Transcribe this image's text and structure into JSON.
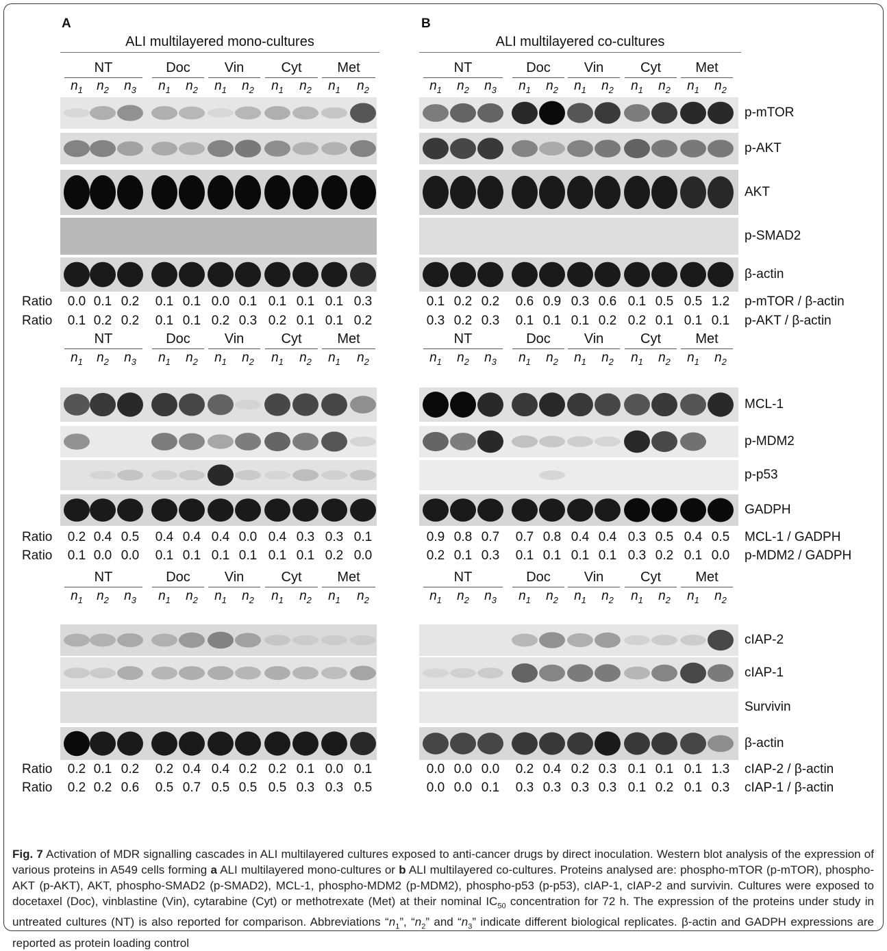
{
  "panels": {
    "A": {
      "label": "A",
      "title": "ALI multilayered mono-cultures"
    },
    "B": {
      "label": "B",
      "title": "ALI multilayered co-cultures"
    }
  },
  "groups": [
    "NT",
    "Doc",
    "Vin",
    "Cyt",
    "Met"
  ],
  "lanes": [
    {
      "letter": "n",
      "sub": "1"
    },
    {
      "letter": "n",
      "sub": "2"
    },
    {
      "letter": "n",
      "sub": "3"
    },
    {
      "letter": "n",
      "sub": "1"
    },
    {
      "letter": "n",
      "sub": "2"
    },
    {
      "letter": "n",
      "sub": "1"
    },
    {
      "letter": "n",
      "sub": "2"
    },
    {
      "letter": "n",
      "sub": "1"
    },
    {
      "letter": "n",
      "sub": "2"
    },
    {
      "letter": "n",
      "sub": "1"
    },
    {
      "letter": "n",
      "sub": "2"
    }
  ],
  "blocks": [
    {
      "blots": [
        {
          "protein": "p-mTOR",
          "bg": "#e6e6e6",
          "A": [
            0.05,
            0.35,
            0.5,
            0.35,
            0.3,
            0.05,
            0.3,
            0.35,
            0.3,
            0.2,
            0.75
          ],
          "B": [
            0.6,
            0.7,
            0.7,
            0.9,
            1.0,
            0.75,
            0.85,
            0.6,
            0.85,
            0.9,
            0.9
          ]
        },
        {
          "protein": "p-AKT",
          "bg": "#dcdcdc",
          "A": [
            0.55,
            0.55,
            0.4,
            0.35,
            0.3,
            0.55,
            0.6,
            0.5,
            0.3,
            0.3,
            0.55
          ],
          "B": [
            0.85,
            0.8,
            0.85,
            0.55,
            0.35,
            0.55,
            0.6,
            0.7,
            0.6,
            0.6,
            0.6
          ]
        },
        {
          "protein": "AKT",
          "bg": "#d4d4d4",
          "A": [
            1.0,
            1.0,
            1.0,
            1.0,
            1.0,
            1.0,
            1.0,
            1.0,
            1.0,
            1.0,
            1.0
          ],
          "B": [
            0.95,
            0.95,
            0.95,
            0.95,
            0.95,
            0.95,
            0.95,
            0.95,
            0.95,
            0.9,
            0.9
          ]
        },
        {
          "protein": "p-SMAD2",
          "bg": "#b8b8b8",
          "bgB": "#dedede",
          "A": [
            0,
            0,
            0,
            0,
            0,
            0,
            0,
            0,
            0,
            0,
            0
          ],
          "B": [
            0,
            0,
            0,
            0,
            0,
            0,
            0,
            0,
            0,
            0,
            0
          ]
        },
        {
          "protein": "β-actin",
          "bg": "#d8d8d8",
          "A": [
            0.95,
            0.95,
            0.95,
            0.95,
            0.95,
            0.95,
            0.95,
            0.95,
            0.95,
            0.95,
            0.9
          ],
          "B": [
            0.95,
            0.95,
            0.95,
            0.95,
            0.95,
            0.95,
            0.95,
            0.95,
            0.95,
            0.95,
            0.95
          ]
        }
      ],
      "ratios": [
        {
          "label": "Ratio",
          "A": [
            "0.0",
            "0.1",
            "0.2",
            "0.1",
            "0.1",
            "0.0",
            "0.1",
            "0.1",
            "0.1",
            "0.1",
            "0.3"
          ],
          "B": [
            "0.1",
            "0.2",
            "0.2",
            "0.6",
            "0.9",
            "0.3",
            "0.6",
            "0.1",
            "0.5",
            "0.5",
            "1.2"
          ],
          "desc": "p-mTOR / β-actin"
        },
        {
          "label": "Ratio",
          "A": [
            "0.1",
            "0.2",
            "0.2",
            "0.1",
            "0.1",
            "0.2",
            "0.3",
            "0.2",
            "0.1",
            "0.1",
            "0.2"
          ],
          "B": [
            "0.3",
            "0.2",
            "0.3",
            "0.1",
            "0.1",
            "0.1",
            "0.2",
            "0.2",
            "0.1",
            "0.1",
            "0.1"
          ],
          "desc": "p-AKT / β-actin"
        }
      ]
    },
    {
      "blots": [
        {
          "protein": "MCL-1",
          "bg": "#e0e0e0",
          "A": [
            0.75,
            0.85,
            0.9,
            0.85,
            0.8,
            0.7,
            0.05,
            0.8,
            0.8,
            0.8,
            0.5
          ],
          "B": [
            1.0,
            1.0,
            0.9,
            0.85,
            0.9,
            0.85,
            0.8,
            0.75,
            0.85,
            0.75,
            0.9
          ]
        },
        {
          "protein": "p-MDM2",
          "bg": "#eaeaea",
          "A": [
            0.5,
            0.0,
            0.0,
            0.6,
            0.55,
            0.4,
            0.6,
            0.7,
            0.6,
            0.75,
            0.1
          ],
          "B": [
            0.7,
            0.6,
            0.9,
            0.25,
            0.2,
            0.15,
            0.1,
            0.9,
            0.8,
            0.65,
            0.0
          ]
        },
        {
          "protein": "p-p53",
          "bg": "#e2e2e2",
          "bgB": "#ececec",
          "A": [
            0.0,
            0.05,
            0.2,
            0.1,
            0.15,
            0.9,
            0.15,
            0.05,
            0.25,
            0.1,
            0.2
          ],
          "B": [
            0,
            0,
            0,
            0,
            0.1,
            0,
            0,
            0,
            0,
            0,
            0
          ]
        },
        {
          "protein": "GADPH",
          "bg": "#d6d6d6",
          "A": [
            0.95,
            0.95,
            0.95,
            0.95,
            0.95,
            0.95,
            0.95,
            0.95,
            0.95,
            0.95,
            0.95
          ],
          "B": [
            0.95,
            0.95,
            0.95,
            0.95,
            0.95,
            0.95,
            0.95,
            1.0,
            1.0,
            1.0,
            1.0
          ]
        }
      ],
      "ratios": [
        {
          "label": "Ratio",
          "A": [
            "0.2",
            "0.4",
            "0.5",
            "0.4",
            "0.4",
            "0.4",
            "0.0",
            "0.4",
            "0.3",
            "0.3",
            "0.1"
          ],
          "B": [
            "0.9",
            "0.8",
            "0.7",
            "0.7",
            "0.8",
            "0.4",
            "0.4",
            "0.3",
            "0.5",
            "0.4",
            "0.5"
          ],
          "desc": "MCL-1 / GADPH"
        },
        {
          "label": "Ratio",
          "A": [
            "0.1",
            "0.0",
            "0.0",
            "0.1",
            "0.1",
            "0.1",
            "0.1",
            "0.1",
            "0.1",
            "0.2",
            "0.0"
          ],
          "B": [
            "0.2",
            "0.1",
            "0.3",
            "0.1",
            "0.1",
            "0.1",
            "0.1",
            "0.3",
            "0.2",
            "0.1",
            "0.0"
          ],
          "desc": "p-MDM2 / GADPH"
        }
      ]
    },
    {
      "blots": [
        {
          "protein": "cIAP-2",
          "bg": "#dadada",
          "bgB": "#e6e6e6",
          "A": [
            0.3,
            0.3,
            0.35,
            0.3,
            0.45,
            0.55,
            0.4,
            0.15,
            0.1,
            0.1,
            0.1
          ],
          "B": [
            0,
            0,
            0,
            0.3,
            0.5,
            0.35,
            0.45,
            0.1,
            0.15,
            0.15,
            0.8
          ]
        },
        {
          "protein": "cIAP-1",
          "bg": "#e4e4e4",
          "A": [
            0.15,
            0.15,
            0.35,
            0.3,
            0.35,
            0.35,
            0.3,
            0.35,
            0.3,
            0.25,
            0.4
          ],
          "B": [
            0.05,
            0.1,
            0.15,
            0.7,
            0.55,
            0.6,
            0.6,
            0.3,
            0.55,
            0.8,
            0.6
          ]
        },
        {
          "protein": "Survivin",
          "bg": "#dddddd",
          "bgB": "#e8e8e8",
          "A": [
            0,
            0,
            0,
            0,
            0,
            0,
            0,
            0,
            0,
            0,
            0
          ],
          "B": [
            0,
            0,
            0,
            0,
            0,
            0,
            0,
            0,
            0,
            0,
            0
          ]
        },
        {
          "protein": "β-actin",
          "bg": "#d8d8d8",
          "A": [
            1.0,
            0.95,
            0.95,
            0.95,
            0.95,
            0.95,
            0.95,
            0.95,
            0.95,
            0.95,
            0.9
          ],
          "B": [
            0.8,
            0.8,
            0.8,
            0.85,
            0.85,
            0.85,
            0.95,
            0.85,
            0.85,
            0.8,
            0.5
          ]
        }
      ],
      "ratios": [
        {
          "label": "Ratio",
          "A": [
            "0.2",
            "0.1",
            "0.2",
            "0.2",
            "0.4",
            "0.4",
            "0.2",
            "0.2",
            "0.1",
            "0.0",
            "0.1"
          ],
          "B": [
            "0.0",
            "0.0",
            "0.0",
            "0.2",
            "0.4",
            "0.2",
            "0.3",
            "0.1",
            "0.1",
            "0.1",
            "1.3"
          ],
          "desc": "cIAP-2 / β-actin"
        },
        {
          "label": "Ratio",
          "A": [
            "0.2",
            "0.2",
            "0.6",
            "0.5",
            "0.7",
            "0.5",
            "0.5",
            "0.5",
            "0.3",
            "0.3",
            "0.5"
          ],
          "B": [
            "0.0",
            "0.0",
            "0.1",
            "0.3",
            "0.3",
            "0.3",
            "0.3",
            "0.1",
            "0.2",
            "0.1",
            "0.3"
          ],
          "desc": "cIAP-1 / β-actin"
        }
      ]
    }
  ],
  "caption": {
    "fig": "Fig. 7",
    "t1": " Activation of MDR signalling cascades in ALI multilayered cultures exposed to anti-cancer drugs by direct inoculation. Western blot analysis of the expression of various proteins in A549 cells forming ",
    "a": "a",
    "t2": " ALI multilayered mono-cultures or ",
    "b": "b",
    "t3": " ALI multilayered co-cultures. Proteins analysed are: phospho-mTOR (p-mTOR), phospho-AKT (p-AKT), AKT, phospho-SMAD2 (p-SMAD2), MCL-1, phospho-MDM2 (p-MDM2), phospho-p53 (p-p53), cIAP-1, cIAP-2 and survivin. Cultures were exposed to docetaxel (Doc), vinblastine (Vin), cytarabine (Cyt) or methotrexate (Met) at their nominal IC",
    "ic_sub": "50",
    "t4": " concentration for 72 h. The expression of the proteins under study in untreated cultures (NT) is also reported for comparison. Abbreviations “",
    "n1": "n",
    "n1s": "1",
    "t5": "”, “",
    "n2": "n",
    "n2s": "2",
    "t6": "” and “",
    "n3": "n",
    "n3s": "3",
    "t7": "” indicate different biological replicates. β-actin and GADPH expressions are reported as protein loading control"
  }
}
